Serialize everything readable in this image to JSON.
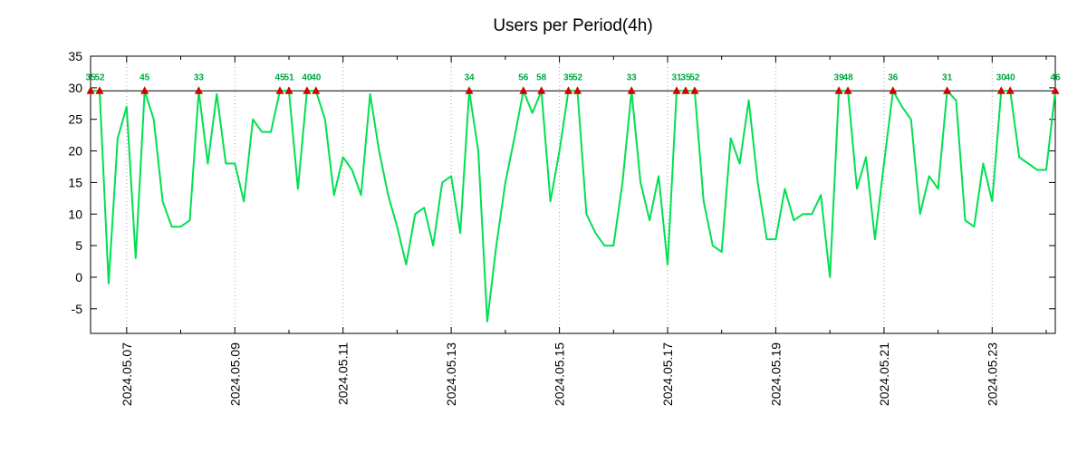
{
  "chart_data": {
    "type": "line",
    "title": "Users per Period(4h)",
    "ylabel": "",
    "xlabel": "",
    "ylim": [
      -8.9,
      35
    ],
    "yticks": [
      -5,
      0,
      5,
      10,
      15,
      20,
      25,
      30,
      35
    ],
    "xticks": [
      {
        "label": "2024.05.07",
        "index": 4
      },
      {
        "label": "2024.05.09",
        "index": 16
      },
      {
        "label": "2024.05.11",
        "index": 28
      },
      {
        "label": "2024.05.13",
        "index": 40
      },
      {
        "label": "2024.05.15",
        "index": 52
      },
      {
        "label": "2024.05.17",
        "index": 64
      },
      {
        "label": "2024.05.19",
        "index": 76
      },
      {
        "label": "2024.05.21",
        "index": 88
      },
      {
        "label": "2024.05.23",
        "index": 100
      }
    ],
    "points_per_day": 6,
    "minor_tick_step": 6,
    "clip_level": 29.5,
    "overflow_rule": "values above clip_level are drawn clipped at the black line with a red triangle marker and the true value printed above in green",
    "values": [
      35,
      52,
      -1,
      22,
      27,
      3,
      45,
      25,
      12,
      8,
      8,
      9,
      33,
      18,
      29,
      18,
      18,
      12,
      25,
      23,
      23,
      45,
      51,
      14,
      40,
      40,
      25,
      13,
      19,
      17,
      13,
      29,
      20,
      13,
      8,
      2,
      10,
      11,
      5,
      15,
      16,
      7,
      34,
      20,
      -7,
      5,
      15,
      22,
      56,
      26,
      58,
      12,
      20,
      35,
      52,
      10,
      7,
      5,
      5,
      15,
      33,
      15,
      9,
      16,
      2,
      31,
      35,
      52,
      12,
      5,
      4,
      22,
      18,
      28,
      15,
      6,
      6,
      14,
      9,
      10,
      10,
      13,
      0,
      39,
      48,
      14,
      19,
      6,
      18,
      36,
      27,
      25,
      10,
      16,
      14,
      31,
      28,
      9,
      8,
      18,
      12,
      30,
      40,
      19,
      18,
      17,
      17,
      46
    ],
    "peak_labels": [
      35,
      52,
      45,
      33,
      45,
      51,
      40,
      40,
      34,
      56,
      58,
      35,
      52,
      33,
      31,
      35,
      52,
      39,
      48,
      36,
      31,
      30,
      40,
      46
    ],
    "grid": "vertical dotted gridlines at labeled x ticks",
    "legend": "none",
    "colors": {
      "line": "#00e050",
      "peak_label": "#00a843",
      "marker": "#d40000",
      "clip_line": "#000000",
      "grid": "#a8a8a8",
      "border": "#000000",
      "background": "#ffffff",
      "title": "#000000"
    }
  }
}
